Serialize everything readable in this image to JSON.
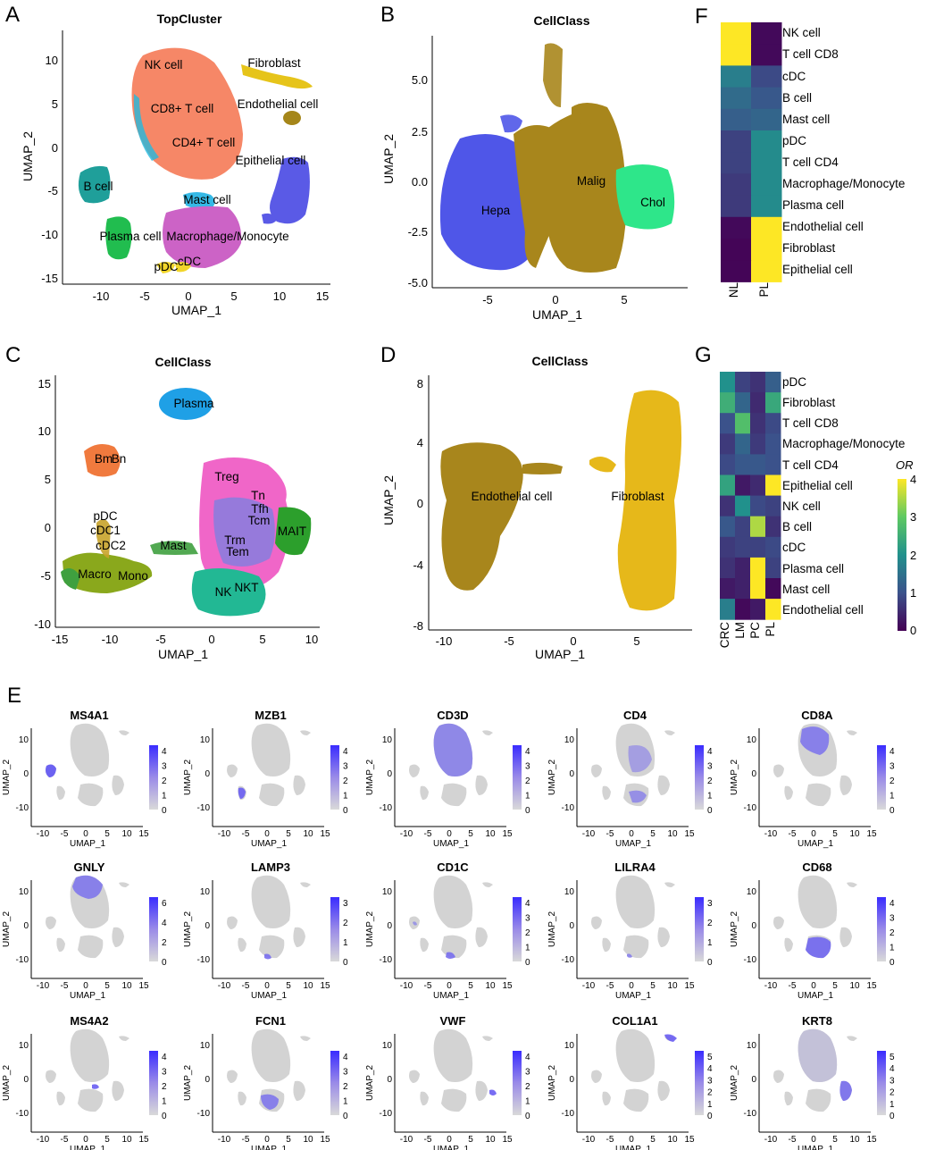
{
  "panels": {
    "A": {
      "letter": "A",
      "title": "TopCluster",
      "xlabel": "UMAP_1",
      "ylabel": "UMAP_2",
      "xticks": [
        "-10",
        "-5",
        "0",
        "5",
        "10",
        "15"
      ],
      "yticks": [
        "10",
        "5",
        "0",
        "-5",
        "-10",
        "-15"
      ],
      "clusters": [
        "NK cell",
        "CD8+ T cell",
        "CD4+ T cell",
        "Fibroblast",
        "Endothelial cell",
        "Epithelial cell",
        "B cell",
        "Mast cell",
        "Plasma cell",
        "Macrophage/Monocyte",
        "pDC",
        "cDC"
      ]
    },
    "B": {
      "letter": "B",
      "title": "CellClass",
      "xlabel": "UMAP_1",
      "ylabel": "UMAP_2",
      "xticks": [
        "-5",
        "0",
        "5"
      ],
      "yticks": [
        "5.0",
        "2.5",
        "0.0",
        "-2.5",
        "-5.0"
      ],
      "clusters": [
        "Hepa",
        "Malig",
        "Chol"
      ]
    },
    "C": {
      "letter": "C",
      "title": "CellClass",
      "xlabel": "UMAP_1",
      "ylabel": "UMAP_2",
      "xticks": [
        "-15",
        "-10",
        "-5",
        "0",
        "5",
        "10"
      ],
      "yticks": [
        "15",
        "10",
        "5",
        "0",
        "-5",
        "-10"
      ],
      "clusters": [
        "Plasma",
        "Bm",
        "Bn",
        "pDC",
        "cDC1",
        "cDC2",
        "Macro",
        "Mono",
        "Mast",
        "Treg",
        "Tn",
        "Tfh",
        "Tcm",
        "MAIT",
        "Trm",
        "Tem",
        "NK",
        "NKT"
      ]
    },
    "D": {
      "letter": "D",
      "title": "CellClass",
      "xlabel": "UMAP_1",
      "ylabel": "UMAP_2",
      "xticks": [
        "-10",
        "-5",
        "0",
        "5"
      ],
      "yticks": [
        "8",
        "4",
        "0",
        "-4",
        "-8"
      ],
      "clusters": [
        "Endothelial cell",
        "Fibroblast"
      ]
    },
    "E": {
      "letter": "E"
    },
    "F": {
      "letter": "F",
      "columns": [
        "NL",
        "PL"
      ],
      "rows": [
        "NK cell",
        "T cell CD8",
        "cDC",
        "B cell",
        "Mast cell",
        "pDC",
        "T cell CD4",
        "Macrophage/Monocyte",
        "Plasma cell",
        "Endothelial cell",
        "Fibroblast",
        "Epithelial cell"
      ]
    },
    "G": {
      "letter": "G",
      "columns": [
        "CRC",
        "LM",
        "PC",
        "PL"
      ],
      "rows": [
        "pDC",
        "Fibroblast",
        "T cell CD8",
        "Macrophage/Monocyte",
        "T cell CD4",
        "Epithelial cell",
        "NK cell",
        "B cell",
        "cDC",
        "Plasma cell",
        "Mast cell",
        "Endothelial cell"
      ],
      "legend_title": "OR",
      "legend_ticks": [
        "4",
        "3",
        "2",
        "1",
        "0"
      ]
    }
  },
  "chart_data": [
    {
      "type": "heatmap",
      "panel": "F",
      "columns": [
        "NL",
        "PL"
      ],
      "rows": [
        "NK cell",
        "T cell CD8",
        "cDC",
        "B cell",
        "Mast cell",
        "pDC",
        "T cell CD4",
        "Macrophage/Monocyte",
        "Plasma cell",
        "Endothelial cell",
        "Fibroblast",
        "Epithelial cell"
      ],
      "values": [
        [
          4.0,
          0.1
        ],
        [
          4.0,
          0.1
        ],
        [
          1.7,
          0.9
        ],
        [
          1.4,
          1.1
        ],
        [
          1.2,
          1.3
        ],
        [
          0.8,
          1.9
        ],
        [
          0.8,
          1.9
        ],
        [
          0.7,
          1.9
        ],
        [
          0.7,
          1.9
        ],
        [
          0.1,
          4.0
        ],
        [
          0.05,
          4.0
        ],
        [
          0.05,
          4.0
        ]
      ],
      "scale": [
        0,
        4
      ]
    },
    {
      "type": "heatmap",
      "panel": "G",
      "columns": [
        "CRC",
        "LM",
        "PC",
        "PL"
      ],
      "rows": [
        "pDC",
        "Fibroblast",
        "T cell CD8",
        "Macrophage/Monocyte",
        "T cell CD4",
        "Epithelial cell",
        "NK cell",
        "B cell",
        "cDC",
        "Plasma cell",
        "Mast cell",
        "Endothelial cell"
      ],
      "values": [
        [
          2.0,
          0.8,
          0.6,
          1.2
        ],
        [
          2.5,
          1.3,
          0.5,
          2.4
        ],
        [
          1.0,
          2.8,
          0.6,
          0.9
        ],
        [
          0.7,
          1.3,
          0.7,
          1.0
        ],
        [
          0.9,
          1.1,
          1.1,
          1.0
        ],
        [
          2.3,
          0.3,
          0.5,
          4.0
        ],
        [
          0.6,
          2.0,
          0.9,
          0.8
        ],
        [
          1.1,
          0.8,
          3.5,
          0.6
        ],
        [
          0.7,
          0.8,
          0.8,
          0.9
        ],
        [
          0.6,
          0.4,
          4.0,
          0.8
        ],
        [
          0.3,
          0.4,
          4.0,
          0.1
        ],
        [
          1.7,
          0.1,
          0.3,
          4.0
        ]
      ],
      "scale": [
        0,
        4
      ],
      "legend_title": "OR"
    },
    {
      "type": "scatter",
      "panel": "E",
      "genes": [
        {
          "name": "MS4A1",
          "max": 4,
          "ticks": [
            "4",
            "3",
            "2",
            "1",
            "0"
          ],
          "xticks": [
            "-10",
            "-5",
            "0",
            "5",
            "10",
            "15"
          ],
          "yticks": [
            "10",
            "0",
            "-10"
          ],
          "xlabel": "UMAP_1",
          "ylabel": "UMAP_2"
        },
        {
          "name": "MZB1",
          "max": 4,
          "ticks": [
            "4",
            "3",
            "2",
            "1",
            "0"
          ],
          "xticks": [
            "-10",
            "-5",
            "0",
            "5",
            "10",
            "15"
          ],
          "yticks": [
            "10",
            "0",
            "-10"
          ],
          "xlabel": "UMAP_1",
          "ylabel": "UMAP_2"
        },
        {
          "name": "CD3D",
          "max": 4,
          "ticks": [
            "4",
            "3",
            "2",
            "1",
            "0"
          ],
          "xticks": [
            "-10",
            "-5",
            "0",
            "5",
            "10",
            "15"
          ],
          "yticks": [
            "10",
            "0",
            "-10"
          ],
          "xlabel": "UMAP_1",
          "ylabel": "UMAP_2"
        },
        {
          "name": "CD4",
          "max": 4,
          "ticks": [
            "4",
            "3",
            "2",
            "1",
            "0"
          ],
          "xticks": [
            "-10",
            "-5",
            "0",
            "5",
            "10",
            "15"
          ],
          "yticks": [
            "10",
            "0",
            "-10"
          ],
          "xlabel": "UMAP_1",
          "ylabel": "UMAP_2"
        },
        {
          "name": "CD8A",
          "max": 4,
          "ticks": [
            "4",
            "3",
            "2",
            "1",
            "0"
          ],
          "xticks": [
            "-10",
            "-5",
            "0",
            "5",
            "10",
            "15"
          ],
          "yticks": [
            "10",
            "0",
            "-10"
          ],
          "xlabel": "UMAP_1",
          "ylabel": "UMAP_2"
        },
        {
          "name": "GNLY",
          "max": 6,
          "ticks": [
            "6",
            "4",
            "2",
            "0"
          ],
          "xticks": [
            "-10",
            "-5",
            "0",
            "5",
            "10",
            "15"
          ],
          "yticks": [
            "10",
            "0",
            "-10"
          ],
          "xlabel": "UMAP_1",
          "ylabel": "UMAP_2"
        },
        {
          "name": "LAMP3",
          "max": 3,
          "ticks": [
            "3",
            "2",
            "1",
            "0"
          ],
          "xticks": [
            "-10",
            "-5",
            "0",
            "5",
            "10",
            "15"
          ],
          "yticks": [
            "10",
            "0",
            "-10"
          ],
          "xlabel": "UMAP_1",
          "ylabel": "UMAP_2"
        },
        {
          "name": "CD1C",
          "max": 4,
          "ticks": [
            "4",
            "3",
            "2",
            "1",
            "0"
          ],
          "xticks": [
            "-10",
            "-5",
            "0",
            "5",
            "10",
            "15"
          ],
          "yticks": [
            "10",
            "0",
            "-10"
          ],
          "xlabel": "UMAP_1",
          "ylabel": "UMAP_2"
        },
        {
          "name": "LILRA4",
          "max": 3,
          "ticks": [
            "3",
            "2",
            "1",
            "0"
          ],
          "xticks": [
            "-10",
            "-5",
            "0",
            "5",
            "10",
            "15"
          ],
          "yticks": [
            "10",
            "0",
            "-10"
          ],
          "xlabel": "UMAP_1",
          "ylabel": "UMAP_2"
        },
        {
          "name": "CD68",
          "max": 4,
          "ticks": [
            "4",
            "3",
            "2",
            "1",
            "0"
          ],
          "xticks": [
            "-10",
            "-5",
            "0",
            "5",
            "10",
            "15"
          ],
          "yticks": [
            "10",
            "0",
            "-10"
          ],
          "xlabel": "UMAP_1",
          "ylabel": "UMAP_2"
        },
        {
          "name": "MS4A2",
          "max": 4,
          "ticks": [
            "4",
            "3",
            "2",
            "1",
            "0"
          ],
          "xticks": [
            "-10",
            "-5",
            "0",
            "5",
            "10",
            "15"
          ],
          "yticks": [
            "10",
            "0",
            "-10"
          ],
          "xlabel": "UMAP_1",
          "ylabel": "UMAP_2"
        },
        {
          "name": "FCN1",
          "max": 4,
          "ticks": [
            "4",
            "3",
            "2",
            "1",
            "0"
          ],
          "xticks": [
            "-10",
            "-5",
            "0",
            "5",
            "10",
            "15"
          ],
          "yticks": [
            "10",
            "0",
            "-10"
          ],
          "xlabel": "UMAP_1",
          "ylabel": "UMAP_2"
        },
        {
          "name": "VWF",
          "max": 4,
          "ticks": [
            "4",
            "3",
            "2",
            "1",
            "0"
          ],
          "xticks": [
            "-10",
            "-5",
            "0",
            "5",
            "10",
            "15"
          ],
          "yticks": [
            "10",
            "0",
            "-10"
          ],
          "xlabel": "UMAP_1",
          "ylabel": "UMAP_2"
        },
        {
          "name": "COL1A1",
          "max": 5,
          "ticks": [
            "5",
            "4",
            "3",
            "2",
            "1",
            "0"
          ],
          "xticks": [
            "-10",
            "-5",
            "0",
            "5",
            "10",
            "15"
          ],
          "yticks": [
            "10",
            "0",
            "-10"
          ],
          "xlabel": "UMAP_1",
          "ylabel": "UMAP_2"
        },
        {
          "name": "KRT8",
          "max": 5,
          "ticks": [
            "5",
            "4",
            "3",
            "2",
            "1",
            "0"
          ],
          "xticks": [
            "-10",
            "-5",
            "0",
            "5",
            "10",
            "15"
          ],
          "yticks": [
            "10",
            "0",
            "-10"
          ],
          "xlabel": "UMAP_1",
          "ylabel": "UMAP_2"
        }
      ]
    }
  ],
  "colors": {
    "viridis": [
      "#440154",
      "#3b528b",
      "#21918c",
      "#5ec962",
      "#fde725"
    ],
    "expr_low": "#d3d3d3",
    "expr_high": "#3b2bff"
  }
}
